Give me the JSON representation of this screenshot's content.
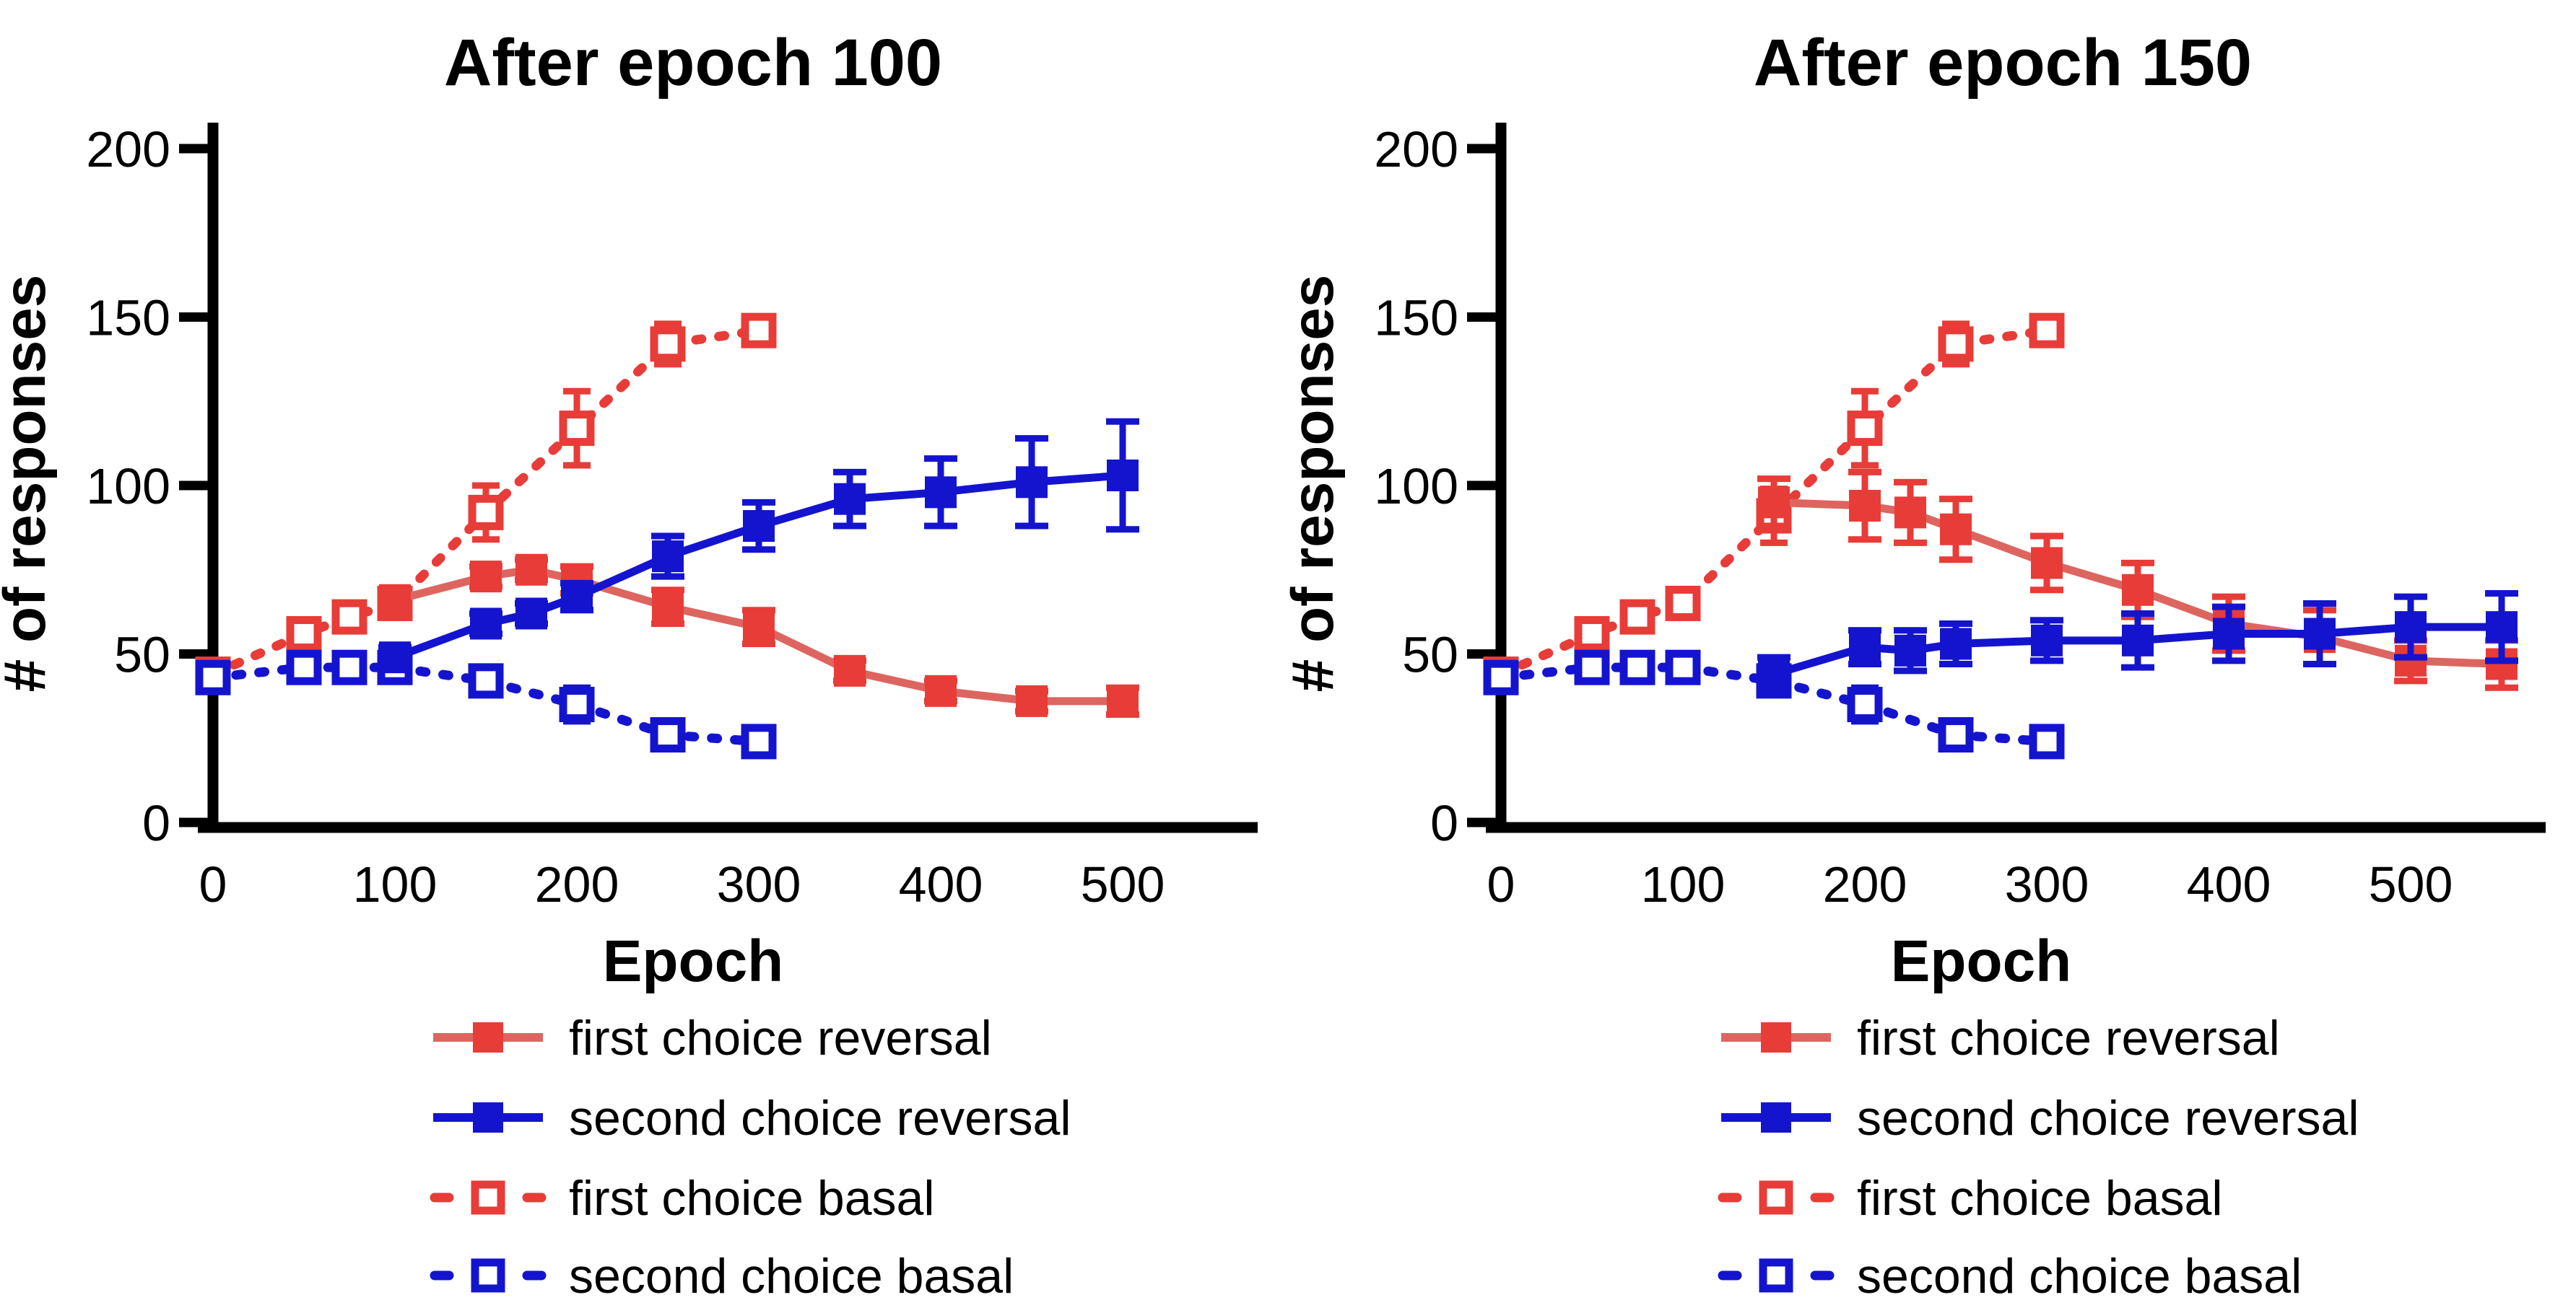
{
  "colors": {
    "red": "#e83c38",
    "red_line": "#dd6560",
    "blue": "#1414cf",
    "axis": "#000000",
    "text": "#000000",
    "background": "#ffffff"
  },
  "legend": {
    "items": [
      {
        "label": "first choice reversal",
        "color": "red",
        "style": "solid",
        "marker": "filled"
      },
      {
        "label": "second choice reversal",
        "color": "blue",
        "style": "solid",
        "marker": "filled"
      },
      {
        "label": "first choice basal",
        "color": "red",
        "style": "dashed",
        "marker": "open"
      },
      {
        "label": "second choice basal",
        "color": "blue",
        "style": "dashed",
        "marker": "open"
      }
    ]
  },
  "chart_data": [
    {
      "type": "line",
      "title": "After epoch 100",
      "xlabel": "Epoch",
      "ylabel": "# of responses",
      "xlim": [
        0,
        560
      ],
      "ylim": [
        0,
        200
      ],
      "x_ticks": [
        0,
        100,
        200,
        300,
        400,
        500
      ],
      "y_ticks": [
        0,
        50,
        100,
        150,
        200
      ],
      "grid": false,
      "legend_position": "below",
      "series": [
        {
          "name": "first_choice_basal",
          "label": "first choice basal",
          "color": "red",
          "style": "dashed",
          "marker": "open",
          "x": [
            0,
            50,
            75,
            100,
            150,
            200,
            250,
            300
          ],
          "y": [
            44,
            56,
            61,
            65,
            92,
            117,
            142,
            146
          ],
          "err": [
            2,
            2,
            2,
            2,
            8,
            11,
            6,
            4
          ]
        },
        {
          "name": "second_choice_basal",
          "label": "second choice basal",
          "color": "blue",
          "style": "dashed",
          "marker": "open",
          "x": [
            0,
            50,
            75,
            100,
            150,
            200,
            250,
            300
          ],
          "y": [
            43,
            46,
            46,
            46,
            42,
            35,
            26,
            24
          ],
          "err": [
            2,
            2,
            2,
            2,
            3,
            5,
            2,
            2
          ]
        },
        {
          "name": "first_choice_reversal",
          "label": "first choice reversal",
          "color": "red",
          "style": "solid",
          "marker": "filled",
          "x": [
            100,
            150,
            175,
            200,
            250,
            300,
            350,
            400,
            450,
            500
          ],
          "y": [
            66,
            73,
            75,
            72,
            64,
            58,
            45,
            39,
            36,
            36
          ],
          "err": [
            3,
            3,
            3,
            4,
            5,
            5,
            3,
            3,
            3,
            4
          ]
        },
        {
          "name": "second_choice_reversal",
          "label": "second choice reversal",
          "color": "blue",
          "style": "solid",
          "marker": "filled",
          "x": [
            100,
            150,
            175,
            200,
            250,
            300,
            350,
            400,
            450,
            500
          ],
          "y": [
            49,
            59,
            62,
            67,
            79,
            88,
            96,
            98,
            101,
            103
          ],
          "err": [
            3,
            3,
            3,
            4,
            6,
            7,
            8,
            10,
            13,
            16
          ]
        }
      ]
    },
    {
      "type": "line",
      "title": "After epoch 150",
      "xlabel": "Epoch",
      "ylabel": "# of responses",
      "xlim": [
        0,
        560
      ],
      "ylim": [
        0,
        200
      ],
      "x_ticks": [
        0,
        100,
        200,
        300,
        400,
        500
      ],
      "y_ticks": [
        0,
        50,
        100,
        150,
        200
      ],
      "grid": false,
      "legend_position": "below",
      "series": [
        {
          "name": "first_choice_basal",
          "label": "first choice basal",
          "color": "red",
          "style": "dashed",
          "marker": "open",
          "x": [
            0,
            50,
            75,
            100,
            150,
            200,
            250,
            300
          ],
          "y": [
            44,
            56,
            61,
            65,
            91,
            117,
            142,
            146
          ],
          "err": [
            2,
            2,
            2,
            2,
            8,
            11,
            6,
            4
          ]
        },
        {
          "name": "second_choice_basal",
          "label": "second choice basal",
          "color": "blue",
          "style": "dashed",
          "marker": "open",
          "x": [
            0,
            50,
            75,
            100,
            150,
            200,
            250,
            300
          ],
          "y": [
            43,
            46,
            46,
            46,
            42,
            35,
            26,
            24
          ],
          "err": [
            2,
            2,
            2,
            2,
            3,
            5,
            2,
            2
          ]
        },
        {
          "name": "first_choice_reversal",
          "label": "first choice reversal",
          "color": "red",
          "style": "solid",
          "marker": "filled",
          "x": [
            150,
            200,
            225,
            250,
            300,
            350,
            400,
            450,
            500,
            550
          ],
          "y": [
            95,
            94,
            92,
            87,
            77,
            69,
            59,
            55,
            48,
            47
          ],
          "err": [
            7,
            10,
            9,
            9,
            8,
            8,
            8,
            8,
            6,
            7
          ]
        },
        {
          "name": "second_choice_reversal",
          "label": "second choice reversal",
          "color": "blue",
          "style": "solid",
          "marker": "filled",
          "x": [
            150,
            200,
            225,
            250,
            300,
            350,
            400,
            450,
            500,
            550
          ],
          "y": [
            44,
            52,
            51,
            53,
            54,
            54,
            56,
            56,
            58,
            58
          ],
          "err": [
            5,
            5,
            6,
            6,
            6,
            8,
            8,
            9,
            9,
            10
          ]
        }
      ]
    }
  ]
}
